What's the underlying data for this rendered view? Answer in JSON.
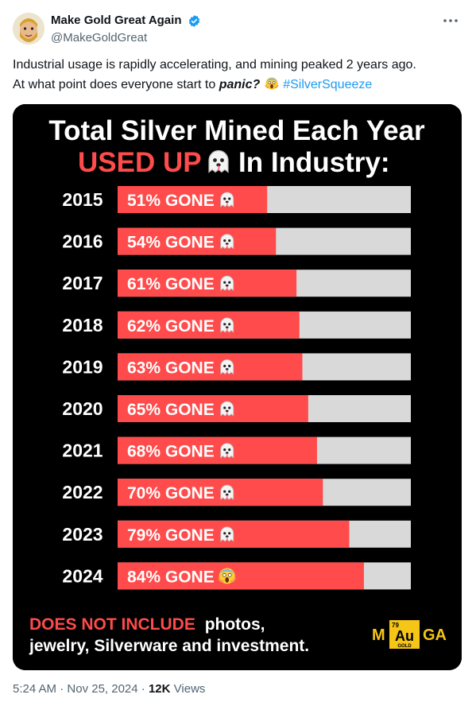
{
  "author": {
    "display_name": "Make Gold Great Again",
    "handle": "@MakeGoldGreat",
    "avatar_icon": "cartoon-avatar-icon",
    "verified_icon": "verified-badge-icon",
    "verified_color": "#1d9bf0"
  },
  "more_icon": "more-options-icon",
  "tweet": {
    "line1": "Industrial usage is rapidly accelerating, and mining peaked 2 years ago.",
    "line2_prefix": "At what point does everyone start to",
    "line2_emphasis": "panic?",
    "line2_emoji_icon": "screaming-face-emoji-icon",
    "hashtag": "#SilverSqueeze",
    "hashtag_color": "#1d9bf0"
  },
  "chart_data": {
    "type": "bar",
    "title_line1": "Total Silver Mined Each Year",
    "title_line2_highlight": "USED UP",
    "title_line2_rest": "In Industry:",
    "categories": [
      "2015",
      "2016",
      "2017",
      "2018",
      "2019",
      "2020",
      "2021",
      "2022",
      "2023",
      "2024"
    ],
    "values": [
      51,
      54,
      61,
      62,
      63,
      65,
      68,
      70,
      79,
      84
    ],
    "bar_labels": [
      "51% GONE",
      "54% GONE",
      "61% GONE",
      "62% GONE",
      "63% GONE",
      "65% GONE",
      "68% GONE",
      "70% GONE",
      "79% GONE",
      "84% GONE"
    ],
    "bar_label_icons": [
      "ghost-emoji-icon",
      "ghost-emoji-icon",
      "ghost-emoji-icon",
      "ghost-emoji-icon",
      "ghost-emoji-icon",
      "ghost-emoji-icon",
      "ghost-emoji-icon",
      "ghost-emoji-icon",
      "ghost-emoji-icon",
      "screaming-face-emoji-icon"
    ],
    "xlim": [
      0,
      100
    ],
    "bar_color": "#ff4b4b",
    "track_color": "#d9d9d9",
    "background_color": "#000000",
    "footnote_highlight": "DOES NOT INCLUDE",
    "footnote_rest_line1": "photos,",
    "footnote_line2": "jewelry, Silverware and investment.",
    "logo": {
      "left": "M",
      "center": "Au",
      "superscript": "79",
      "subscript": "GOLD",
      "right": "GA",
      "color": "#f5c518"
    }
  },
  "meta": {
    "time": "5:24 AM",
    "separator": "·",
    "date": "Nov 25, 2024",
    "views_count": "12K",
    "views_label": "Views"
  }
}
